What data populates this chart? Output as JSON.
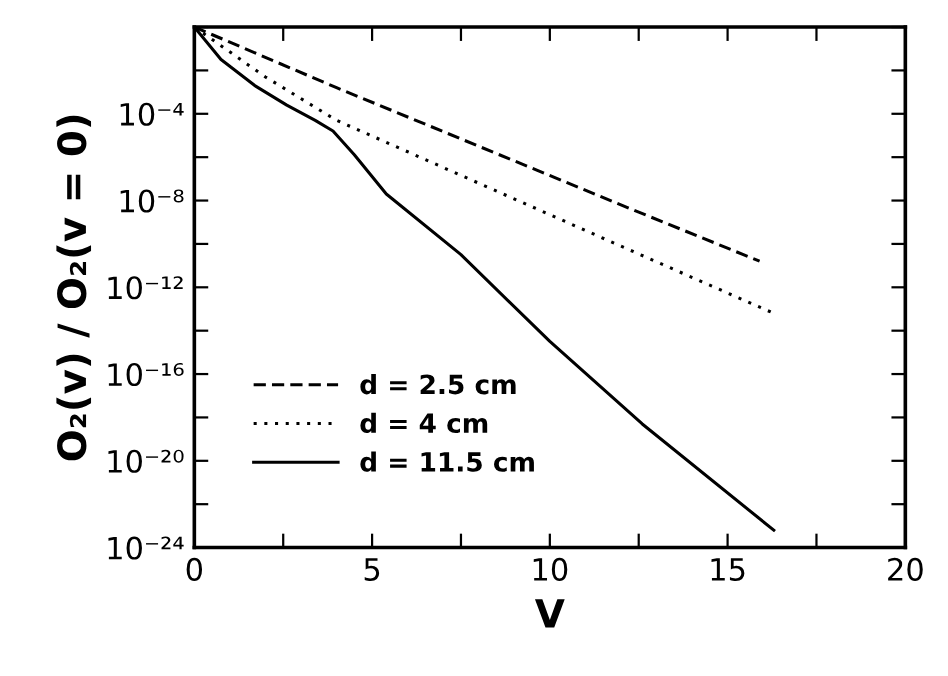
{
  "chart_data": {
    "type": "line",
    "xlabel": "V",
    "ylabel": "O₂(v) / O₂(v = 0)",
    "log": "y",
    "xlim": [
      0,
      20
    ],
    "ylim": [
      1e-24,
      1
    ],
    "xticks": [
      0,
      {
        "value": 2.5,
        "label": null
      },
      5,
      {
        "value": 7.5,
        "label": null
      },
      10,
      {
        "value": 12.5,
        "label": null
      },
      15,
      {
        "value": 17.5,
        "label": null
      },
      20
    ],
    "yticks": [
      {
        "value": 1e-24,
        "label": "10⁻²⁴"
      },
      {
        "value": 1e-22,
        "label": null
      },
      {
        "value": 1e-20,
        "label": "10⁻²⁰"
      },
      {
        "value": 1e-18,
        "label": null
      },
      {
        "value": 1e-16,
        "label": "10⁻¹⁶"
      },
      {
        "value": 1e-14,
        "label": null
      },
      {
        "value": 1e-12,
        "label": "10⁻¹²"
      },
      {
        "value": 1e-10,
        "label": null
      },
      {
        "value": 1e-08,
        "label": "10⁻⁸"
      },
      {
        "value": 1e-06,
        "label": null
      },
      {
        "value": 0.0001,
        "label": "10⁻⁴"
      },
      {
        "value": 0.01,
        "label": null
      },
      {
        "value": 1,
        "label": null
      }
    ],
    "grid": false,
    "legend": "lower left",
    "series": [
      {
        "name": "d = 2.5 cm",
        "color": "#000000",
        "line_style": "dashed",
        "x": [
          0,
          4,
          8,
          12,
          15.9
        ],
        "values": [
          1,
          0.0016,
          3.2e-06,
          6.3e-09,
          1.6e-11
        ]
      },
      {
        "name": "d = 4 cm",
        "color": "#000000",
        "line_style": "dotted",
        "x": [
          0,
          2,
          4,
          8,
          12,
          16.3
        ],
        "values": [
          1,
          0.005,
          5e-05,
          6.3e-08,
          7.9e-11,
          6.3e-14
        ]
      },
      {
        "name": "d = 11.5 cm",
        "color": "#000000",
        "line_style": "solid",
        "x": [
          0,
          0.75,
          1.7,
          2.6,
          3.4,
          3.9,
          4.5,
          5.4,
          7.5,
          10,
          12.6,
          16.3
        ],
        "values": [
          1,
          0.032,
          0.002,
          0.00025,
          5e-05,
          1.6e-05,
          1.3e-06,
          2e-08,
          3.2e-11,
          3.2e-15,
          5e-19,
          6.3e-24
        ]
      }
    ]
  }
}
